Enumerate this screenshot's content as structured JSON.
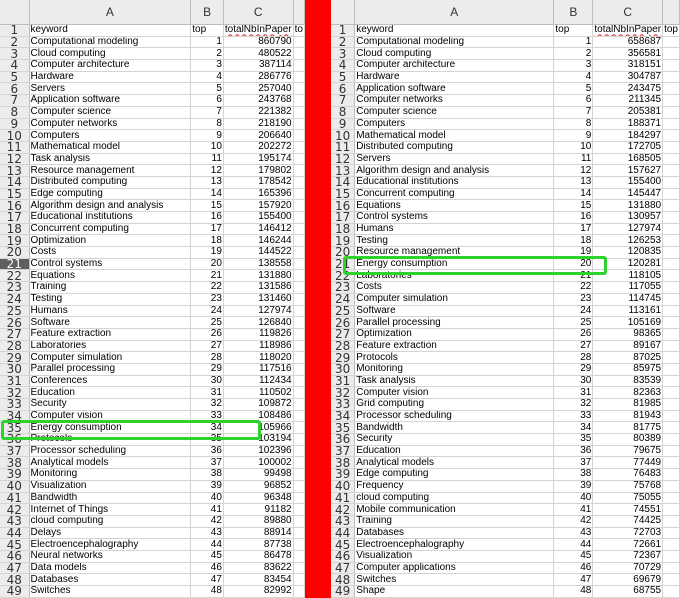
{
  "left": {
    "columns": [
      "A",
      "B",
      "C"
    ],
    "header": {
      "keyword": "keyword",
      "top": "top",
      "total": "totalNbInPaper",
      "next": "to"
    },
    "rows": [
      [
        "Computational modeling",
        "1",
        "860790"
      ],
      [
        "Cloud computing",
        "2",
        "480522"
      ],
      [
        "Computer architecture",
        "3",
        "387114"
      ],
      [
        "Hardware",
        "4",
        "286776"
      ],
      [
        "Servers",
        "5",
        "257040"
      ],
      [
        "Application software",
        "6",
        "243768"
      ],
      [
        "Computer science",
        "7",
        "221382"
      ],
      [
        "Computer networks",
        "8",
        "218190"
      ],
      [
        "Computers",
        "9",
        "206640"
      ],
      [
        "Mathematical model",
        "10",
        "202272"
      ],
      [
        "Task analysis",
        "11",
        "195174"
      ],
      [
        "Resource management",
        "12",
        "179802"
      ],
      [
        "Distributed computing",
        "13",
        "178542"
      ],
      [
        "Edge computing",
        "14",
        "165396"
      ],
      [
        "Algorithm design and analysis",
        "15",
        "157920"
      ],
      [
        "Educational institutions",
        "16",
        "155400"
      ],
      [
        "Concurrent computing",
        "17",
        "146412"
      ],
      [
        "Optimization",
        "18",
        "146244"
      ],
      [
        "Costs",
        "19",
        "144522"
      ],
      [
        "Control systems",
        "20",
        "138558"
      ],
      [
        "Equations",
        "21",
        "131880"
      ],
      [
        "Training",
        "22",
        "131586"
      ],
      [
        "Testing",
        "23",
        "131460"
      ],
      [
        "Humans",
        "24",
        "127974"
      ],
      [
        "Software",
        "25",
        "126840"
      ],
      [
        "Feature extraction",
        "26",
        "119826"
      ],
      [
        "Laboratories",
        "27",
        "118986"
      ],
      [
        "Computer simulation",
        "28",
        "118020"
      ],
      [
        "Parallel processing",
        "29",
        "117516"
      ],
      [
        "Conferences",
        "30",
        "112434"
      ],
      [
        "Education",
        "31",
        "110502"
      ],
      [
        "Security",
        "32",
        "109872"
      ],
      [
        "Computer vision",
        "33",
        "108486"
      ],
      [
        "Energy consumption",
        "34",
        "105966"
      ],
      [
        "Protocols",
        "35",
        "103194"
      ],
      [
        "Processor scheduling",
        "36",
        "102396"
      ],
      [
        "Analytical models",
        "37",
        "100002"
      ],
      [
        "Monitoring",
        "38",
        "99498"
      ],
      [
        "Visualization",
        "39",
        "96852"
      ],
      [
        "Bandwidth",
        "40",
        "96348"
      ],
      [
        "Internet of Things",
        "41",
        "91182"
      ],
      [
        "cloud computing",
        "42",
        "89880"
      ],
      [
        "Delays",
        "43",
        "88914"
      ],
      [
        "Electroencephalography",
        "44",
        "87738"
      ],
      [
        "Neural networks",
        "45",
        "86478"
      ],
      [
        "Data models",
        "46",
        "83622"
      ],
      [
        "Databases",
        "47",
        "83454"
      ],
      [
        "Switches",
        "48",
        "82992"
      ]
    ]
  },
  "right": {
    "columns": [
      "A",
      "B",
      "C"
    ],
    "header": {
      "keyword": "keyword",
      "top": "top",
      "total": "totalNbInPaper",
      "next": "top"
    },
    "rows": [
      [
        "Computational modeling",
        "1",
        "658687"
      ],
      [
        "Cloud computing",
        "2",
        "356581"
      ],
      [
        "Computer architecture",
        "3",
        "318151"
      ],
      [
        "Hardware",
        "4",
        "304787"
      ],
      [
        "Application software",
        "5",
        "243475"
      ],
      [
        "Computer networks",
        "6",
        "211345"
      ],
      [
        "Computer science",
        "7",
        "205381"
      ],
      [
        "Computers",
        "8",
        "188371"
      ],
      [
        "Mathematical model",
        "9",
        "184297"
      ],
      [
        "Distributed computing",
        "10",
        "172705"
      ],
      [
        "Servers",
        "11",
        "168505"
      ],
      [
        "Algorithm design and analysis",
        "12",
        "157627"
      ],
      [
        "Educational institutions",
        "13",
        "155400"
      ],
      [
        "Concurrent computing",
        "14",
        "145447"
      ],
      [
        "Equations",
        "15",
        "131880"
      ],
      [
        "Control systems",
        "16",
        "130957"
      ],
      [
        "Humans",
        "17",
        "127974"
      ],
      [
        "Testing",
        "18",
        "126253"
      ],
      [
        "Resource management",
        "19",
        "120835"
      ],
      [
        "Energy consumption",
        "20",
        "120281"
      ],
      [
        "Laboratories",
        "21",
        "118105"
      ],
      [
        "Costs",
        "22",
        "117055"
      ],
      [
        "Computer simulation",
        "23",
        "114745"
      ],
      [
        "Software",
        "24",
        "113161"
      ],
      [
        "Parallel processing",
        "25",
        "105169"
      ],
      [
        "Optimization",
        "26",
        "98365"
      ],
      [
        "Feature extraction",
        "27",
        "89167"
      ],
      [
        "Protocols",
        "28",
        "87025"
      ],
      [
        "Monitoring",
        "29",
        "85975"
      ],
      [
        "Task analysis",
        "30",
        "83539"
      ],
      [
        "Computer vision",
        "31",
        "82363"
      ],
      [
        "Grid computing",
        "32",
        "81985"
      ],
      [
        "Processor scheduling",
        "33",
        "81943"
      ],
      [
        "Bandwidth",
        "34",
        "81775"
      ],
      [
        "Security",
        "35",
        "80389"
      ],
      [
        "Education",
        "36",
        "79675"
      ],
      [
        "Analytical models",
        "37",
        "77449"
      ],
      [
        "Edge computing",
        "38",
        "76483"
      ],
      [
        "Frequency",
        "39",
        "75768"
      ],
      [
        "cloud computing",
        "40",
        "75055"
      ],
      [
        "Mobile communication",
        "41",
        "74551"
      ],
      [
        "Training",
        "42",
        "74425"
      ],
      [
        "Databases",
        "43",
        "72703"
      ],
      [
        "Electroencephalography",
        "44",
        "72661"
      ],
      [
        "Visualization",
        "45",
        "72367"
      ],
      [
        "Computer applications",
        "46",
        "70729"
      ],
      [
        "Switches",
        "47",
        "69679"
      ],
      [
        "Shape",
        "48",
        "68755"
      ]
    ]
  },
  "highlights": {
    "left_row": 35,
    "right_row": 21,
    "color": "#2fd12f"
  },
  "colors": {
    "divider": "#ff0000",
    "header_bg": "#ececec",
    "selected_row_header": "#5f5f5f"
  }
}
